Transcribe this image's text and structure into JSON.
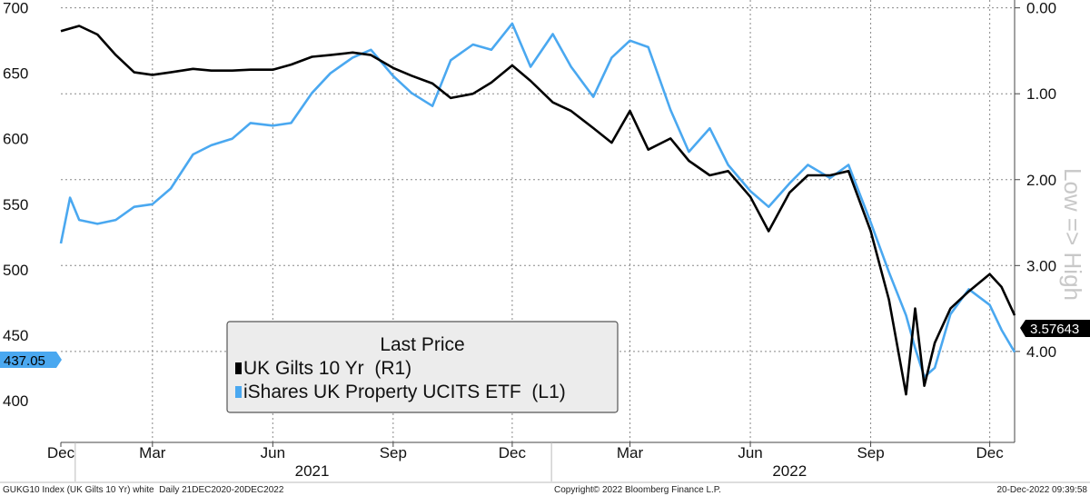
{
  "chart_data": {
    "type": "line",
    "title": "",
    "x_range": [
      "2020-12-21",
      "2022-12-20"
    ],
    "x_ticks": [
      {
        "label": "Dec",
        "date": "2020-12-21"
      },
      {
        "label": "Mar",
        "date": "2021-03-01"
      },
      {
        "label": "Jun",
        "date": "2021-06-01"
      },
      {
        "label": "Sep",
        "date": "2021-09-01"
      },
      {
        "label": "Dec",
        "date": "2021-12-01"
      },
      {
        "label": "Mar",
        "date": "2022-03-01"
      },
      {
        "label": "Jun",
        "date": "2022-06-01"
      },
      {
        "label": "Sep",
        "date": "2022-09-01"
      },
      {
        "label": "Dec",
        "date": "2022-12-01"
      }
    ],
    "year_labels": [
      {
        "label": "2021",
        "date": "2021-07-01"
      },
      {
        "label": "2022",
        "date": "2022-07-01"
      }
    ],
    "year_dividers": [
      "2021-01-01",
      "2021-12-31"
    ],
    "left_axis": {
      "range": [
        368,
        706
      ],
      "ticks": [
        {
          "value": 700,
          "label": "700"
        },
        {
          "value": 650,
          "label": "650"
        },
        {
          "value": 600,
          "label": "600"
        },
        {
          "value": 550,
          "label": "550"
        },
        {
          "value": 500,
          "label": "500"
        },
        {
          "value": 450,
          "label": "450"
        },
        {
          "value": 400,
          "label": "400"
        }
      ]
    },
    "right_axis": {
      "inverted": true,
      "label": "Low => High",
      "ticks": [
        {
          "value": 0.0,
          "label": "0.00"
        },
        {
          "value": 1.0,
          "label": "1.00"
        },
        {
          "value": 2.0,
          "label": "2.00"
        },
        {
          "value": 3.0,
          "label": "3.00"
        },
        {
          "value": 4.0,
          "label": "4.00"
        }
      ]
    },
    "grid": true,
    "legend": {
      "placement": "bottom-center",
      "title": "Last Price",
      "entries": [
        "UK Gilts 10 Yr  (R1)",
        "iShares UK Property UCITS ETF  (L1)"
      ]
    },
    "last_value_tags": [
      {
        "series": "UK Gilts 10 Yr  (R1)",
        "label": "3.57643"
      },
      {
        "series": "iShares UK Property UCITS ETF  (L1)",
        "label": "437.05"
      }
    ],
    "series": [
      {
        "name": "UK Gilts 10 Yr  (R1)",
        "axis": "right",
        "color": "#000000",
        "x": [
          "2020-12-21",
          "2021-01-04",
          "2021-01-18",
          "2021-02-01",
          "2021-02-15",
          "2021-03-01",
          "2021-03-15",
          "2021-04-01",
          "2021-04-15",
          "2021-05-01",
          "2021-05-15",
          "2021-06-01",
          "2021-06-15",
          "2021-07-01",
          "2021-07-15",
          "2021-08-01",
          "2021-08-15",
          "2021-09-01",
          "2021-09-15",
          "2021-10-01",
          "2021-10-15",
          "2021-11-01",
          "2021-11-15",
          "2021-12-01",
          "2021-12-15",
          "2022-01-01",
          "2022-01-15",
          "2022-02-01",
          "2022-02-15",
          "2022-03-01",
          "2022-03-15",
          "2022-04-01",
          "2022-04-15",
          "2022-05-01",
          "2022-05-15",
          "2022-06-01",
          "2022-06-15",
          "2022-07-01",
          "2022-07-15",
          "2022-08-01",
          "2022-08-15",
          "2022-09-01",
          "2022-09-15",
          "2022-09-28",
          "2022-10-05",
          "2022-10-12",
          "2022-10-20",
          "2022-11-01",
          "2022-11-15",
          "2022-12-01",
          "2022-12-10",
          "2022-12-20"
        ],
        "values": [
          0.27,
          0.21,
          0.31,
          0.55,
          0.75,
          0.78,
          0.75,
          0.71,
          0.73,
          0.73,
          0.72,
          0.72,
          0.66,
          0.57,
          0.55,
          0.52,
          0.55,
          0.7,
          0.79,
          0.88,
          1.05,
          1.0,
          0.87,
          0.67,
          0.85,
          1.1,
          1.2,
          1.4,
          1.57,
          1.2,
          1.65,
          1.52,
          1.78,
          1.95,
          1.9,
          2.2,
          2.6,
          2.15,
          1.95,
          1.95,
          1.9,
          2.6,
          3.4,
          4.5,
          3.5,
          4.4,
          3.9,
          3.5,
          3.3,
          3.1,
          3.25,
          3.58
        ]
      },
      {
        "name": "iShares UK Property UCITS ETF  (L1)",
        "axis": "left",
        "color": "#4aa8f0",
        "x": [
          "2020-12-21",
          "2020-12-28",
          "2021-01-04",
          "2021-01-18",
          "2021-02-01",
          "2021-02-15",
          "2021-03-01",
          "2021-03-15",
          "2021-04-01",
          "2021-04-15",
          "2021-05-01",
          "2021-05-15",
          "2021-06-01",
          "2021-06-15",
          "2021-07-01",
          "2021-07-15",
          "2021-08-01",
          "2021-08-15",
          "2021-09-01",
          "2021-09-15",
          "2021-10-01",
          "2021-10-15",
          "2021-11-01",
          "2021-11-15",
          "2021-12-01",
          "2021-12-15",
          "2022-01-01",
          "2022-01-15",
          "2022-02-01",
          "2022-02-15",
          "2022-03-01",
          "2022-03-15",
          "2022-04-01",
          "2022-04-15",
          "2022-05-01",
          "2022-05-15",
          "2022-06-01",
          "2022-06-15",
          "2022-07-01",
          "2022-07-15",
          "2022-08-01",
          "2022-08-15",
          "2022-09-01",
          "2022-09-15",
          "2022-09-28",
          "2022-10-05",
          "2022-10-12",
          "2022-10-20",
          "2022-11-01",
          "2022-11-15",
          "2022-12-01",
          "2022-12-10",
          "2022-12-20"
        ],
        "values": [
          520,
          555,
          538,
          535,
          538,
          548,
          550,
          562,
          588,
          595,
          600,
          612,
          610,
          612,
          635,
          650,
          662,
          668,
          648,
          635,
          625,
          660,
          672,
          668,
          688,
          655,
          680,
          655,
          632,
          662,
          675,
          670,
          622,
          590,
          608,
          580,
          560,
          548,
          566,
          580,
          570,
          580,
          536,
          498,
          465,
          440,
          418,
          425,
          466,
          485,
          473,
          454,
          437
        ]
      }
    ]
  },
  "footer": {
    "left": "GUKG10 Index (UK Gilts 10 Yr) white  Daily 21DEC2020-20DEC2022",
    "center": "Copyright© 2022 Bloomberg Finance L.P.",
    "right": "20-Dec-2022 09:39:58"
  }
}
